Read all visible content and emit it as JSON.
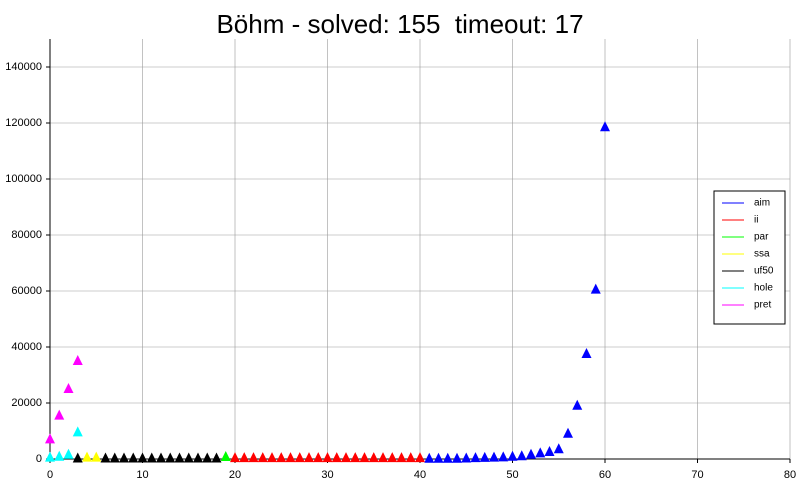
{
  "chart_data": {
    "type": "scatter",
    "title": "Böhm - solved: 155  timeout: 17",
    "xlim": [
      0,
      80
    ],
    "xticks": [
      0,
      10,
      20,
      30,
      40,
      50,
      60,
      70,
      80
    ],
    "ylim": [
      0,
      150000
    ],
    "yticks": [
      0,
      20000,
      40000,
      60000,
      80000,
      100000,
      120000,
      140000
    ],
    "grid": true,
    "legend": "right",
    "series": [
      {
        "name": "aim",
        "color": "#0000ff",
        "x": [
          41,
          42,
          43,
          44,
          45,
          46,
          47,
          48,
          49,
          50,
          51,
          52,
          53,
          54,
          55,
          56,
          57,
          58,
          59,
          60
        ],
        "values": [
          100,
          100,
          100,
          100,
          200,
          300,
          400,
          500,
          600,
          800,
          1000,
          1500,
          2000,
          2500,
          3500,
          9000,
          19000,
          37500,
          60500,
          118500
        ]
      },
      {
        "name": "ii",
        "color": "#ff0000",
        "x": [
          20,
          21,
          22,
          23,
          24,
          25,
          26,
          27,
          28,
          29,
          30,
          31,
          32,
          33,
          34,
          35,
          36,
          37,
          38,
          39,
          40
        ],
        "values": [
          300,
          300,
          300,
          300,
          300,
          300,
          300,
          300,
          300,
          300,
          300,
          300,
          300,
          300,
          300,
          300,
          300,
          300,
          300,
          300,
          300
        ]
      },
      {
        "name": "par",
        "color": "#00ff00",
        "x": [
          19
        ],
        "values": [
          700
        ]
      },
      {
        "name": "ssa",
        "color": "#ffff00",
        "x": [
          4,
          5
        ],
        "values": [
          500,
          500
        ]
      },
      {
        "name": "uf50",
        "color": "#000000",
        "x": [
          3,
          6,
          7,
          8,
          9,
          10,
          11,
          12,
          13,
          14,
          15,
          16,
          17,
          18
        ],
        "values": [
          200,
          200,
          200,
          200,
          200,
          200,
          200,
          200,
          200,
          200,
          200,
          200,
          200,
          200
        ]
      },
      {
        "name": "hole",
        "color": "#00ffff",
        "x": [
          0,
          1,
          2,
          3
        ],
        "values": [
          500,
          800,
          1500,
          9500
        ]
      },
      {
        "name": "pret",
        "color": "#ff00ff",
        "x": [
          0,
          1,
          2,
          3
        ],
        "values": [
          7000,
          15500,
          25000,
          35000
        ]
      }
    ]
  }
}
